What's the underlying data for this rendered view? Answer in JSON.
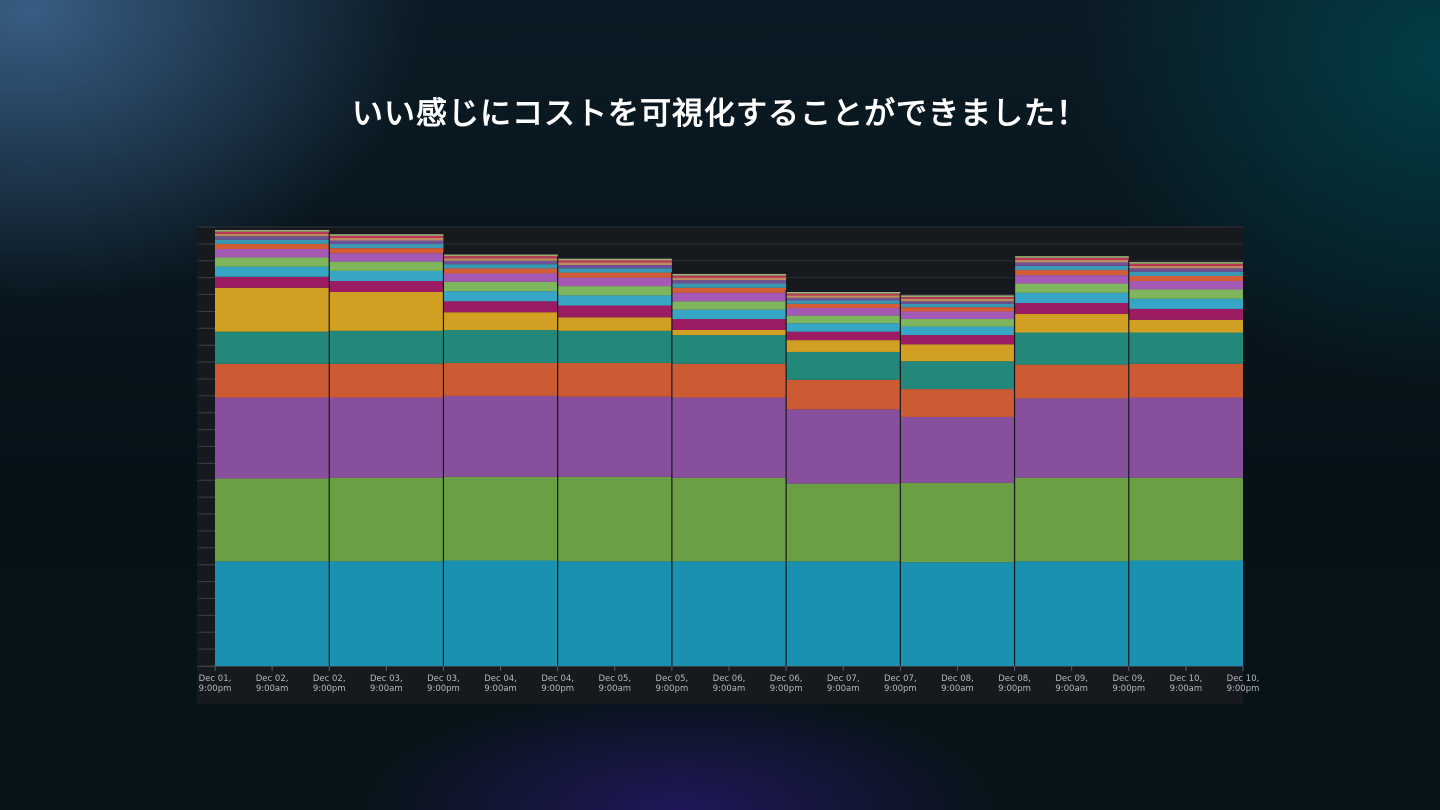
{
  "slide": {
    "title": "いい感じにコストを可視化することができました！"
  },
  "chart_data": {
    "type": "bar",
    "stacked": true,
    "ylim": [
      0,
      26
    ],
    "grid": true,
    "legend": "none",
    "bar_groups": [
      {
        "label": "Dec 02",
        "bar": 0
      },
      {
        "label": "Dec 03",
        "bar": 1
      },
      {
        "label": "Dec 04",
        "bar": 2
      },
      {
        "label": "Dec 05",
        "bar": 3
      },
      {
        "label": "Dec 06",
        "bar": 4
      },
      {
        "label": "Dec 07",
        "bar": 5
      },
      {
        "label": "Dec 08",
        "bar": 6
      },
      {
        "label": "Dec 09",
        "bar": 7
      },
      {
        "label": "Dec 10",
        "bar": 8
      }
    ],
    "x_tick_labels": [
      [
        "Dec 01,",
        "9:00pm"
      ],
      [
        "Dec 02,",
        "9:00am"
      ],
      [
        "Dec 02,",
        "9:00pm"
      ],
      [
        "Dec 03,",
        "9:00am"
      ],
      [
        "Dec 03,",
        "9:00pm"
      ],
      [
        "Dec 04,",
        "9:00am"
      ],
      [
        "Dec 04,",
        "9:00pm"
      ],
      [
        "Dec 05,",
        "9:00am"
      ],
      [
        "Dec 05,",
        "9:00pm"
      ],
      [
        "Dec 06,",
        "9:00am"
      ],
      [
        "Dec 06,",
        "9:00pm"
      ],
      [
        "Dec 07,",
        "9:00am"
      ],
      [
        "Dec 07,",
        "9:00pm"
      ],
      [
        "Dec 08,",
        "9:00am"
      ],
      [
        "Dec 08,",
        "9:00pm"
      ],
      [
        "Dec 09,",
        "9:00am"
      ],
      [
        "Dec 09,",
        "9:00pm"
      ],
      [
        "Dec 10,",
        "9:00am"
      ],
      [
        "Dec 10,",
        "9:00pm"
      ]
    ],
    "series": [
      {
        "color": "#1a91b0",
        "values": [
          6.2,
          6.2,
          6.25,
          6.2,
          6.2,
          6.2,
          6.15,
          6.2,
          6.25
        ]
      },
      {
        "color": "#6aa043",
        "values": [
          4.9,
          4.95,
          4.95,
          5.0,
          4.95,
          4.6,
          4.7,
          4.95,
          4.9
        ]
      },
      {
        "color": "#88509c",
        "values": [
          4.8,
          4.75,
          4.8,
          4.75,
          4.75,
          4.4,
          3.9,
          4.7,
          4.75
        ]
      },
      {
        "color": "#cc5b34",
        "values": [
          2.0,
          2.0,
          1.95,
          2.0,
          2.0,
          1.75,
          1.65,
          2.0,
          2.0
        ]
      },
      {
        "color": "#23887a",
        "values": [
          1.9,
          1.95,
          1.95,
          1.9,
          1.7,
          1.65,
          1.65,
          1.9,
          1.85
        ]
      },
      {
        "color": "#d1a023",
        "values": [
          2.6,
          2.3,
          1.05,
          0.8,
          0.3,
          0.7,
          1.0,
          1.1,
          0.75
        ]
      },
      {
        "color": "#9c1c63",
        "values": [
          0.65,
          0.65,
          0.65,
          0.7,
          0.65,
          0.5,
          0.55,
          0.65,
          0.65
        ]
      },
      {
        "color": "#36a5c6",
        "values": [
          0.6,
          0.6,
          0.6,
          0.6,
          0.55,
          0.5,
          0.5,
          0.6,
          0.6
        ]
      },
      {
        "color": "#7fb65d",
        "values": [
          0.55,
          0.55,
          0.55,
          0.55,
          0.5,
          0.45,
          0.45,
          0.55,
          0.55
        ]
      },
      {
        "color": "#a45ab5",
        "values": [
          0.5,
          0.5,
          0.5,
          0.5,
          0.5,
          0.45,
          0.45,
          0.5,
          0.5
        ]
      },
      {
        "color": "#d35d37",
        "values": [
          0.3,
          0.3,
          0.3,
          0.3,
          0.3,
          0.25,
          0.25,
          0.3,
          0.3
        ]
      },
      {
        "color": "#3b98b2",
        "values": [
          0.25,
          0.25,
          0.25,
          0.25,
          0.25,
          0.2,
          0.2,
          0.25,
          0.25
        ]
      },
      {
        "color": "#6f5296",
        "values": [
          0.2,
          0.2,
          0.2,
          0.2,
          0.2,
          0.15,
          0.15,
          0.2,
          0.2
        ]
      },
      {
        "color": "#bd8b5e",
        "values": [
          0.15,
          0.15,
          0.15,
          0.15,
          0.15,
          0.15,
          0.15,
          0.15,
          0.15
        ]
      },
      {
        "color": "#c0355b",
        "values": [
          0.12,
          0.12,
          0.12,
          0.12,
          0.12,
          0.1,
          0.1,
          0.12,
          0.12
        ]
      },
      {
        "color": "#8fa94a",
        "values": [
          0.1,
          0.1,
          0.1,
          0.1,
          0.1,
          0.1,
          0.1,
          0.1,
          0.1
        ]
      }
    ]
  }
}
